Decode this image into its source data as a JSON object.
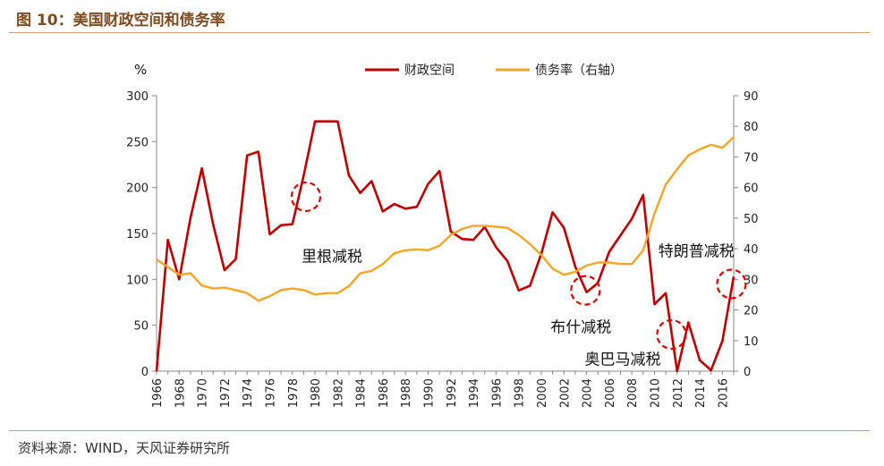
{
  "header": {
    "title": "图 10：美国财政空间和债务率"
  },
  "footer": {
    "source": "资料来源：WIND，天风证券研究所"
  },
  "colors": {
    "fiscal_space": "#c00000",
    "debt_ratio": "#f5a623",
    "rule": "#c8a273",
    "title": "#7f4b1e"
  },
  "chart_data": {
    "type": "line",
    "left_axis_unit": "%",
    "ylim_left": [
      0,
      300
    ],
    "ylim_right": [
      0,
      90
    ],
    "left_ticks": [
      0,
      50,
      100,
      150,
      200,
      250,
      300
    ],
    "right_ticks": [
      0,
      10,
      20,
      30,
      40,
      50,
      60,
      70,
      80,
      90
    ],
    "x_ticks": [
      "1966",
      "1968",
      "1970",
      "1972",
      "1974",
      "1976",
      "1978",
      "1980",
      "1982",
      "1984",
      "1986",
      "1988",
      "1990",
      "1992",
      "1994",
      "1996",
      "1998",
      "2000",
      "2002",
      "2004",
      "2006",
      "2008",
      "2010",
      "2012",
      "2014",
      "2016"
    ],
    "legend_position": "top",
    "series": [
      {
        "name": "财政空间",
        "axis": "left",
        "x": [
          1966,
          1967,
          1968,
          1969,
          1970,
          1971,
          1972,
          1973,
          1974,
          1975,
          1976,
          1977,
          1978,
          1979,
          1980,
          1981,
          1982,
          1983,
          1984,
          1985,
          1986,
          1987,
          1988,
          1989,
          1990,
          1991,
          1992,
          1993,
          1994,
          1995,
          1996,
          1997,
          1998,
          1999,
          2000,
          2001,
          2002,
          2003,
          2004,
          2005,
          2006,
          2007,
          2008,
          2009,
          2010,
          2011,
          2012,
          2013,
          2014,
          2015,
          2016,
          2017
        ],
        "values": [
          0,
          143,
          100,
          167,
          221,
          160,
          110,
          122,
          235,
          239,
          149,
          159,
          160,
          213,
          272,
          272,
          272,
          213,
          194,
          207,
          174,
          182,
          177,
          179,
          204,
          218,
          152,
          144,
          143,
          157,
          135,
          120,
          88,
          93,
          128,
          173,
          156,
          114,
          86,
          96,
          130,
          148,
          166,
          192,
          73,
          85,
          0,
          53,
          12,
          1,
          33,
          103
        ]
      },
      {
        "name": "债务率（右轴）",
        "axis": "right",
        "x": [
          1966,
          1967,
          1968,
          1969,
          1970,
          1971,
          1972,
          1973,
          1974,
          1975,
          1976,
          1977,
          1978,
          1979,
          1980,
          1981,
          1982,
          1983,
          1984,
          1985,
          1986,
          1987,
          1988,
          1989,
          1990,
          1991,
          1992,
          1993,
          1994,
          1995,
          1996,
          1997,
          1998,
          1999,
          2000,
          2001,
          2002,
          2003,
          2004,
          2005,
          2006,
          2007,
          2008,
          2009,
          2010,
          2011,
          2012,
          2013,
          2014,
          2015,
          2016,
          2017
        ],
        "values": [
          36.5,
          34,
          31.5,
          32,
          28,
          27,
          27.3,
          26.5,
          25.5,
          23,
          24.5,
          26.5,
          27,
          26.5,
          25,
          25.5,
          25.5,
          27.8,
          32,
          32.8,
          35,
          38.5,
          39.5,
          39.8,
          39.5,
          41,
          44.5,
          46.5,
          47.5,
          47.5,
          47.2,
          46.8,
          44.5,
          41.5,
          38,
          33.5,
          31.5,
          32.5,
          34.5,
          35.5,
          35.5,
          35,
          35,
          39.5,
          51.5,
          61,
          66,
          70.5,
          72.5,
          74,
          73,
          76.5
        ]
      }
    ],
    "annotations": [
      {
        "text": "里根减税",
        "year": 1981.5,
        "value": 125,
        "circle_year": 1979.2,
        "circle_value": 190
      },
      {
        "text": "布什减税",
        "year": 2003.5,
        "value": 48,
        "circle_year": 2003.9,
        "circle_value": 88
      },
      {
        "text": "奥巴马减税",
        "year": 2007.2,
        "value": 13,
        "circle_year": 2011.5,
        "circle_value": 40
      },
      {
        "text": "特朗普减税",
        "year": 2013.7,
        "value": 131,
        "circle_year": 2016.8,
        "circle_value": 95
      }
    ]
  }
}
